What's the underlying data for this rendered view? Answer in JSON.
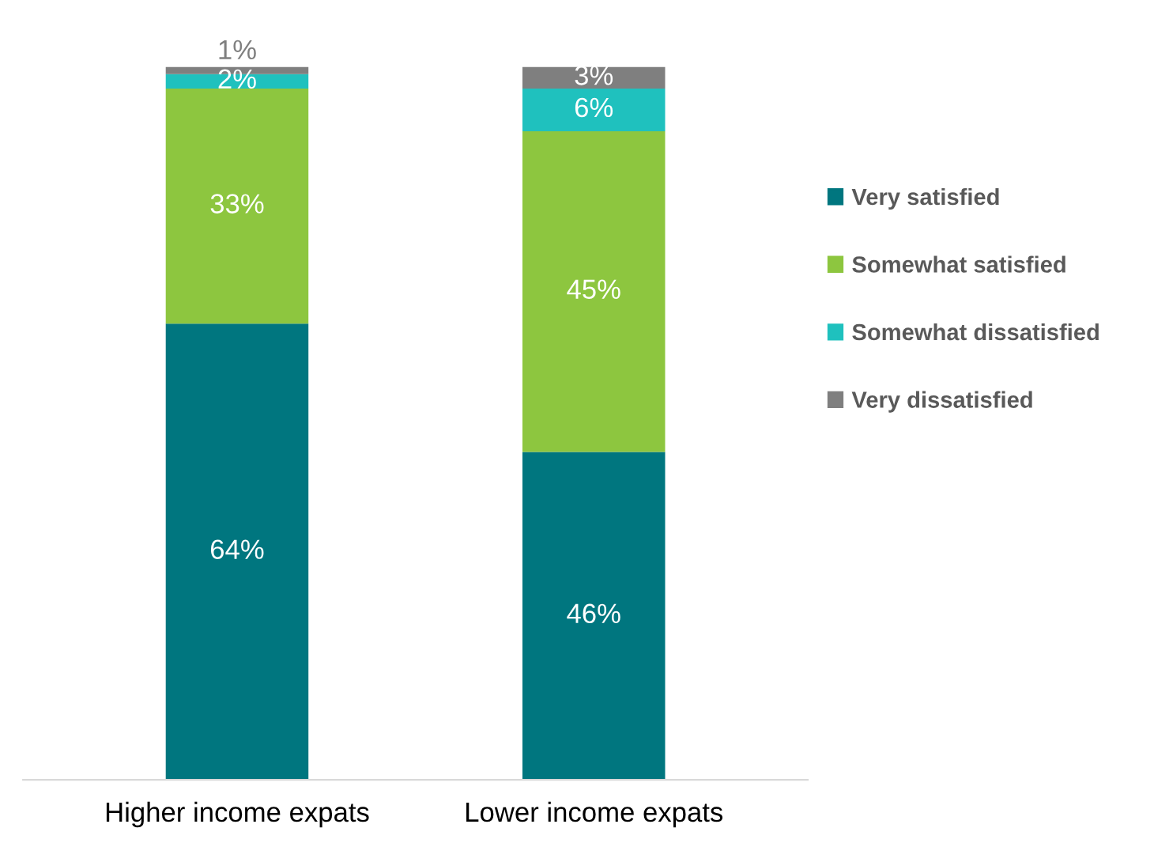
{
  "chart_data": {
    "type": "bar",
    "stacked": true,
    "categories": [
      "Higher income expats",
      "Lower income expats"
    ],
    "series": [
      {
        "name": "Very satisfied",
        "color": "#00767f",
        "values": [
          64,
          46
        ],
        "value_labels": [
          "64%",
          "46%"
        ]
      },
      {
        "name": "Somewhat satisfied",
        "color": "#8dc63f",
        "values": [
          33,
          45
        ],
        "value_labels": [
          "33%",
          "45%"
        ]
      },
      {
        "name": "Somewhat dissatisfied",
        "color": "#1fc1be",
        "values": [
          2,
          6
        ],
        "value_labels": [
          "2%",
          "6%"
        ]
      },
      {
        "name": "Very dissatisfied",
        "color": "#7f7f7f",
        "values": [
          1,
          3
        ],
        "value_labels": [
          "1%",
          "3%"
        ]
      }
    ],
    "legend": "right",
    "tick_labels": "x",
    "grid": false
  }
}
